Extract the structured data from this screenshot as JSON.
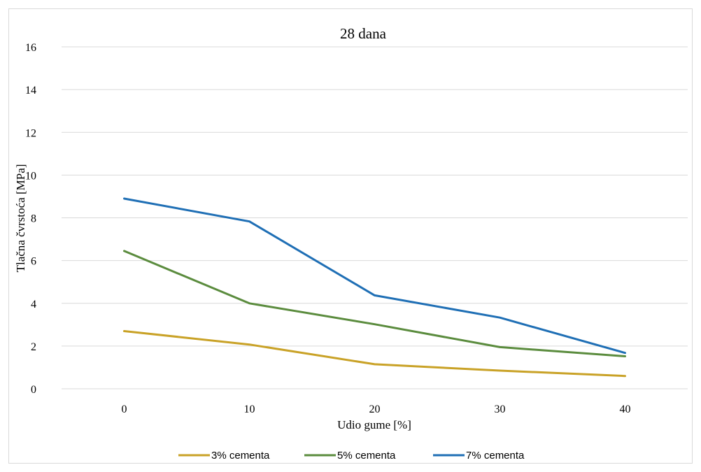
{
  "chart_data": {
    "type": "line",
    "title": "28 dana",
    "xlabel": "Udio gume [%]",
    "ylabel": "Tlačna čvrstoća [MPa]",
    "x": [
      0,
      10,
      20,
      30,
      40
    ],
    "ylim": [
      0,
      16
    ],
    "yticks": [
      0,
      2,
      4,
      6,
      8,
      10,
      12,
      14,
      16
    ],
    "grid": true,
    "legend_position": "bottom",
    "series": [
      {
        "name": "3% cementa",
        "color": "#C9A227",
        "values": [
          2.7,
          2.07,
          1.15,
          0.85,
          0.6
        ]
      },
      {
        "name": "5% cementa",
        "color": "#5B8C3E",
        "values": [
          6.45,
          4.0,
          3.02,
          1.95,
          1.52
        ]
      },
      {
        "name": "7% cementa",
        "color": "#1F6FB5",
        "values": [
          8.9,
          7.83,
          4.37,
          3.33,
          1.68
        ]
      }
    ]
  }
}
